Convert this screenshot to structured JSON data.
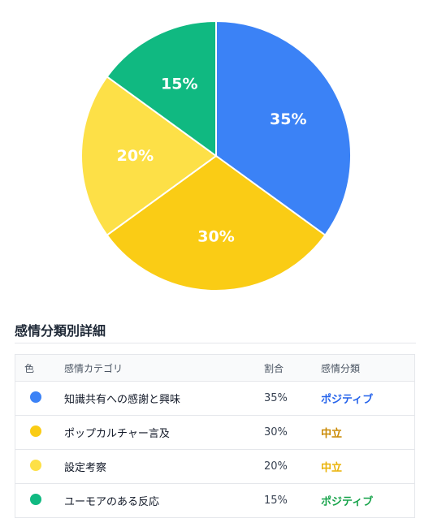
{
  "chart_data": {
    "type": "pie",
    "slices": [
      {
        "label": "知識共有への感謝と興味",
        "value": 35,
        "display": "35%",
        "color": "#3b82f6"
      },
      {
        "label": "ポップカルチャー言及",
        "value": 30,
        "display": "30%",
        "color": "#facc15"
      },
      {
        "label": "設定考察",
        "value": 20,
        "display": "20%",
        "color": "#fde047"
      },
      {
        "label": "ユーモアのある反応",
        "value": 15,
        "display": "15%",
        "color": "#10b981"
      }
    ]
  },
  "section": {
    "title": "感情分類別詳細"
  },
  "table": {
    "headers": {
      "color": "色",
      "category": "感情カテゴリ",
      "ratio": "割合",
      "classification": "感情分類"
    },
    "rows": [
      {
        "color": "#3b82f6",
        "category": "知識共有への感謝と興味",
        "ratio": "35%",
        "classification": "ポジティブ",
        "class_color": "#2563eb"
      },
      {
        "color": "#facc15",
        "category": "ポップカルチャー言及",
        "ratio": "30%",
        "classification": "中立",
        "class_color": "#ca8a04"
      },
      {
        "color": "#fde047",
        "category": "設定考察",
        "ratio": "20%",
        "classification": "中立",
        "class_color": "#eab308"
      },
      {
        "color": "#10b981",
        "category": "ユーモアのある反応",
        "ratio": "15%",
        "classification": "ポジティブ",
        "class_color": "#16a34a"
      }
    ]
  }
}
